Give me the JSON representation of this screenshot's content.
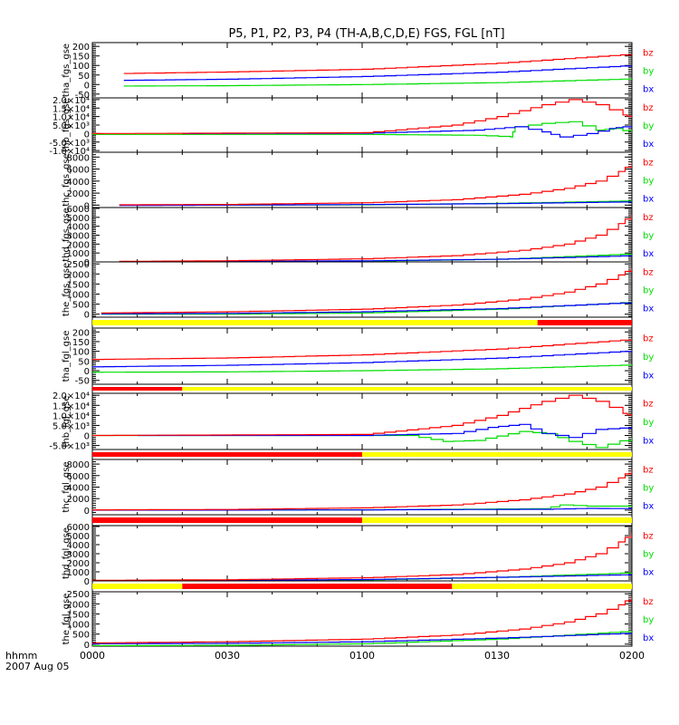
{
  "chart_data": {
    "type": "line",
    "title": "P5, P1, P2, P3, P4 (TH-A,B,C,D,E) FGS, FGL [nT]",
    "xlabel": "hhmm",
    "date_label": "2007 Aug 05",
    "x_tick_labels": [
      "0000",
      "0030",
      "0100",
      "0130",
      "0200"
    ],
    "x_range_minutes": [
      0,
      120
    ],
    "colors": {
      "bx": "#0000ff",
      "by": "#00dd00",
      "bz": "#ff0000",
      "bar_yellow": "#ffff00",
      "bar_red": "#ff0000",
      "axis": "#000000"
    },
    "legend": [
      "bz",
      "by",
      "bx"
    ],
    "panels": [
      {
        "ylabel": "tha_fgs_gse",
        "ylim": [
          -70,
          220
        ],
        "y_tick_labels": [
          "200",
          "150",
          "100",
          "50",
          "0",
          "-50"
        ],
        "y_tick_values": [
          200,
          150,
          100,
          50,
          0,
          -50
        ],
        "series": {
          "bz": {
            "x": [
              7,
              30,
              60,
              90,
              120
            ],
            "y": [
              58,
              66,
              80,
              112,
              160
            ]
          },
          "by": {
            "x": [
              7,
              30,
              60,
              90,
              120
            ],
            "y": [
              -8,
              -6,
              0,
              10,
              30
            ]
          },
          "bx": {
            "x": [
              7,
              30,
              60,
              90,
              120
            ],
            "y": [
              22,
              28,
              42,
              65,
              100
            ]
          }
        },
        "legend": [
          "bz",
          "by",
          "bx"
        ]
      },
      {
        "ylabel": "thb_fgs_gse",
        "ylim": [
          -11000,
          21000
        ],
        "y_tick_labels": [
          "2.0×10⁴",
          "1.5×10⁴",
          "1.0×10⁴",
          "5.0×10³",
          "0",
          "-5.0×10³",
          "-1.0×10⁴"
        ],
        "y_tick_values": [
          20000,
          15000,
          10000,
          5000,
          0,
          -5000,
          -10000
        ],
        "series": {
          "bz": {
            "x": [
              0,
              60,
              80,
              90,
              100,
              106,
              112,
              118,
              120
            ],
            "y": [
              0,
              500,
              5000,
              10000,
              17000,
              20000,
              17000,
              11000,
              9500
            ]
          },
          "by": {
            "x": [
              0,
              60,
              85,
              93,
              94,
              100,
              106,
              112,
              116,
              120
            ],
            "y": [
              -500,
              -500,
              -1000,
              -2000,
              4000,
              6000,
              7000,
              2000,
              3000,
              500
            ]
          },
          "bx": {
            "x": [
              20,
              60,
              85,
              94,
              100,
              104,
              110,
              115,
              118,
              120
            ],
            "y": [
              0,
              200,
              2000,
              4000,
              1000,
              -2000,
              0,
              3000,
              4000,
              4000
            ]
          }
        },
        "legend": [
          "bz",
          "by",
          "bx"
        ]
      },
      {
        "ylabel": "thc_fgs_gse",
        "ylim": [
          -400,
          8800
        ],
        "y_tick_labels": [
          "8000",
          "6000",
          "4000",
          "2000",
          "0"
        ],
        "y_tick_values": [
          8000,
          6000,
          4000,
          2000,
          0
        ],
        "series": {
          "bz": {
            "x": [
              6,
              30,
              60,
              80,
              95,
              105,
              112,
              117,
              120
            ],
            "y": [
              50,
              120,
              400,
              900,
              1800,
              2800,
              4000,
              5600,
              7000
            ]
          },
          "by": {
            "x": [
              6,
              30,
              60,
              90,
              120
            ],
            "y": [
              0,
              0,
              50,
              300,
              700
            ]
          },
          "bx": {
            "x": [
              6,
              30,
              60,
              90,
              120
            ],
            "y": [
              -50,
              0,
              100,
              250,
              550
            ]
          }
        },
        "legend": [
          "bz",
          "by",
          "bx"
        ]
      },
      {
        "ylabel": "thd_fgs_gse",
        "ylim": [
          0,
          6100
        ],
        "y_tick_labels": [
          "6000",
          "5000",
          "4000",
          "3000",
          "2000",
          "1000",
          "0"
        ],
        "y_tick_values": [
          6000,
          5000,
          4000,
          3000,
          2000,
          1000,
          0
        ],
        "series": {
          "bz": {
            "x": [
              6,
              30,
              60,
              80,
              95,
              105,
              112,
              117,
              120
            ],
            "y": [
              60,
              130,
              350,
              700,
              1300,
              2000,
              3000,
              4300,
              5300
            ]
          },
          "by": {
            "x": [
              6,
              30,
              60,
              90,
              120
            ],
            "y": [
              20,
              30,
              80,
              300,
              900
            ]
          },
          "bx": {
            "x": [
              6,
              30,
              60,
              90,
              120
            ],
            "y": [
              40,
              60,
              120,
              300,
              700
            ]
          }
        },
        "legend": [
          "bz",
          "by",
          "bx"
        ]
      },
      {
        "ylabel": "the_fgs_gse",
        "ylim": [
          -150,
          2600
        ],
        "y_tick_labels": [
          "2500",
          "2000",
          "1500",
          "1000",
          "500",
          "0"
        ],
        "y_tick_values": [
          2500,
          2000,
          1500,
          1000,
          500,
          0
        ],
        "series": {
          "bz": {
            "x": [
              2,
              30,
              60,
              80,
              95,
              105,
              112,
              117,
              120
            ],
            "y": [
              60,
              120,
              250,
              450,
              750,
              1100,
              1500,
              1950,
              2300
            ]
          },
          "by": {
            "x": [
              2,
              30,
              60,
              90,
              120
            ],
            "y": [
              0,
              0,
              60,
              250,
              600
            ]
          },
          "bx": {
            "x": [
              2,
              30,
              60,
              90,
              120
            ],
            "y": [
              20,
              40,
              120,
              280,
              580
            ]
          }
        },
        "legend": [
          "bz",
          "by",
          "bx"
        ],
        "bar": [
          {
            "from": 0,
            "to": 99,
            "color": "yellow"
          },
          {
            "from": 99,
            "to": 120,
            "color": "red"
          }
        ]
      },
      {
        "ylabel": "tha_fgl_gse",
        "ylim": [
          -70,
          220
        ],
        "y_tick_labels": [
          "200",
          "150",
          "100",
          "50",
          "0",
          "-50"
        ],
        "y_tick_values": [
          200,
          150,
          100,
          50,
          0,
          -50
        ],
        "series": {
          "bz": {
            "x": [
              0,
              30,
              60,
              90,
              120
            ],
            "y": [
              58,
              66,
              82,
              112,
              162
            ]
          },
          "by": {
            "x": [
              0,
              30,
              60,
              90,
              120
            ],
            "y": [
              -8,
              -6,
              0,
              10,
              30
            ]
          },
          "bx": {
            "x": [
              0,
              30,
              60,
              90,
              120
            ],
            "y": [
              20,
              28,
              42,
              65,
              102
            ]
          }
        },
        "legend": [
          "bz",
          "by",
          "bx"
        ],
        "bar": [
          {
            "from": 0,
            "to": 20,
            "color": "red"
          },
          {
            "from": 20,
            "to": 120,
            "color": "yellow"
          }
        ]
      },
      {
        "ylabel": "thb_fgl_gse",
        "ylim": [
          -7000,
          21000
        ],
        "y_tick_labels": [
          "2.0×10⁴",
          "1.5×10⁴",
          "1.0×10⁴",
          "5.0×10³",
          "0",
          "-5.0×10³"
        ],
        "y_tick_values": [
          20000,
          15000,
          10000,
          5000,
          0,
          -5000
        ],
        "series": {
          "bz": {
            "x": [
              0,
              60,
              80,
              90,
              100,
              106,
              112,
              118,
              120
            ],
            "y": [
              0,
              500,
              5000,
              10000,
              17000,
              20000,
              17000,
              11000,
              9500
            ]
          },
          "by": {
            "x": [
              0,
              70,
              78,
              85,
              95,
              101,
              106,
              112,
              120
            ],
            "y": [
              0,
              0,
              -3000,
              -2500,
              2000,
              800,
              -3000,
              -6000,
              -1000
            ]
          },
          "bx": {
            "x": [
              10,
              60,
              80,
              88,
              95,
              100,
              106,
              112,
              120
            ],
            "y": [
              0,
              0,
              1000,
              4000,
              5500,
              1000,
              -1000,
              3000,
              4000
            ]
          }
        },
        "legend": [
          "bz",
          "by",
          "bx"
        ],
        "bar": [
          {
            "from": 0,
            "to": 60,
            "color": "red"
          },
          {
            "from": 60,
            "to": 120,
            "color": "yellow"
          }
        ]
      },
      {
        "ylabel": "thc_fgl_gse",
        "ylim": [
          -800,
          8800
        ],
        "y_tick_labels": [
          "8000",
          "6000",
          "4000",
          "2000",
          "0"
        ],
        "y_tick_values": [
          8000,
          6000,
          4000,
          2000,
          0
        ],
        "series": {
          "bz": {
            "x": [
              0,
              30,
              60,
              80,
              95,
              105,
              112,
              117,
              120
            ],
            "y": [
              50,
              120,
              400,
              900,
              1800,
              2800,
              4000,
              5600,
              7000
            ]
          },
          "by": {
            "x": [
              0,
              30,
              60,
              80,
              100,
              104,
              110,
              120
            ],
            "y": [
              0,
              0,
              50,
              150,
              250,
              900,
              700,
              700
            ]
          },
          "bx": {
            "x": [
              0,
              30,
              60,
              80,
              100,
              110,
              120
            ],
            "y": [
              0,
              0,
              50,
              100,
              150,
              300,
              250
            ]
          }
        },
        "legend": [
          "bz",
          "by",
          "bx"
        ],
        "bar": [
          {
            "from": 0,
            "to": 60,
            "color": "red"
          },
          {
            "from": 60,
            "to": 120,
            "color": "yellow"
          }
        ]
      },
      {
        "ylabel": "thd_fgl_gse",
        "ylim": [
          0,
          6100
        ],
        "y_tick_labels": [
          "6000",
          "5000",
          "4000",
          "3000",
          "2000",
          "1000",
          "0"
        ],
        "y_tick_values": [
          6000,
          5000,
          4000,
          3000,
          2000,
          1000,
          0
        ],
        "series": {
          "bz": {
            "x": [
              0,
              30,
              60,
              80,
              95,
              105,
              112,
              117,
              120
            ],
            "y": [
              60,
              130,
              350,
              700,
              1300,
              2000,
              3000,
              4300,
              5300
            ]
          },
          "by": {
            "x": [
              0,
              30,
              60,
              90,
              120
            ],
            "y": [
              20,
              40,
              100,
              400,
              900
            ]
          },
          "bx": {
            "x": [
              0,
              30,
              60,
              90,
              120
            ],
            "y": [
              40,
              60,
              150,
              400,
              700
            ]
          }
        },
        "legend": [
          "bz",
          "by",
          "bx"
        ],
        "bar": [
          {
            "from": 0,
            "to": 20,
            "color": "yellow"
          },
          {
            "from": 20,
            "to": 80,
            "color": "red"
          },
          {
            "from": 80,
            "to": 120,
            "color": "yellow"
          }
        ]
      },
      {
        "ylabel": "the_fgl_gse",
        "ylim": [
          -100,
          2600
        ],
        "y_tick_labels": [
          "2500",
          "2000",
          "1500",
          "1000",
          "500",
          "0"
        ],
        "y_tick_values": [
          2500,
          2000,
          1500,
          1000,
          500,
          0
        ],
        "series": {
          "bz": {
            "x": [
              0,
              30,
              60,
              80,
              95,
              105,
              112,
              117,
              120
            ],
            "y": [
              60,
              120,
              250,
              450,
              750,
              1100,
              1500,
              1950,
              2350
            ]
          },
          "by": {
            "x": [
              0,
              30,
              60,
              90,
              120
            ],
            "y": [
              -80,
              -60,
              20,
              250,
              650
            ]
          },
          "bx": {
            "x": [
              0,
              30,
              60,
              90,
              120
            ],
            "y": [
              20,
              40,
              120,
              300,
              550
            ]
          }
        },
        "legend": [
          "bz",
          "by",
          "bx"
        ]
      }
    ]
  }
}
